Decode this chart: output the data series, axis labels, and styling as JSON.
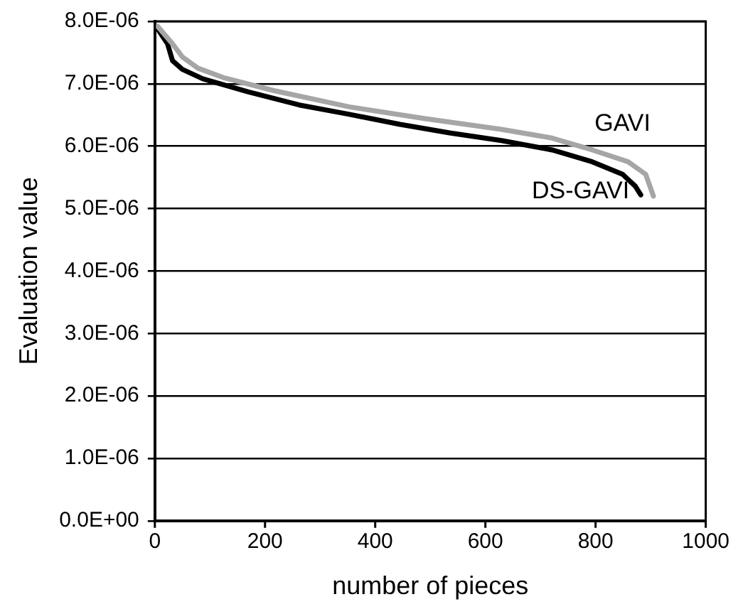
{
  "chart_data": {
    "type": "line",
    "xlabel": "number of pieces",
    "ylabel": "Evaluation value",
    "xlim": [
      0,
      1000
    ],
    "xticks": [
      0,
      200,
      400,
      600,
      800,
      1000
    ],
    "ylim": [
      0,
      8e-06
    ],
    "yticks": [
      {
        "value": 0,
        "label": "0.0E+00"
      },
      {
        "value": 1e-06,
        "label": "1.0E-06"
      },
      {
        "value": 2e-06,
        "label": "2.0E-06"
      },
      {
        "value": 3e-06,
        "label": "3.0E-06"
      },
      {
        "value": 4e-06,
        "label": "4.0E-06"
      },
      {
        "value": 5e-06,
        "label": "5.0E-06"
      },
      {
        "value": 6e-06,
        "label": "6.0E-06"
      },
      {
        "value": 7e-06,
        "label": "7.0E-06"
      },
      {
        "value": 8e-06,
        "label": "8.0E-06"
      }
    ],
    "grid": "y",
    "legend": false,
    "marker": "none",
    "line_style": "solid",
    "series": [
      {
        "name": "GAVI",
        "color": "#a6a6a6",
        "x": [
          5,
          32,
          50,
          78,
          124,
          216,
          353,
          491,
          629,
          721,
          794,
          859,
          891,
          905
        ],
        "values": [
          7.92e-06,
          7.64e-06,
          7.43e-06,
          7.25e-06,
          7.1e-06,
          6.89e-06,
          6.63e-06,
          6.44e-06,
          6.27e-06,
          6.13e-06,
          5.94e-06,
          5.75e-06,
          5.55e-06,
          5.2e-06
        ]
      },
      {
        "name": "DS-GAVI",
        "color": "#000000",
        "x": [
          5,
          23,
          32,
          50,
          87,
          170,
          262,
          353,
          445,
          537,
          629,
          721,
          794,
          849,
          872,
          882
        ],
        "values": [
          7.88e-06,
          7.64e-06,
          7.37e-06,
          7.23e-06,
          7.08e-06,
          6.87e-06,
          6.66e-06,
          6.51e-06,
          6.35e-06,
          6.21e-06,
          6.09e-06,
          5.94e-06,
          5.75e-06,
          5.55e-06,
          5.36e-06,
          5.22e-06
        ]
      }
    ]
  }
}
